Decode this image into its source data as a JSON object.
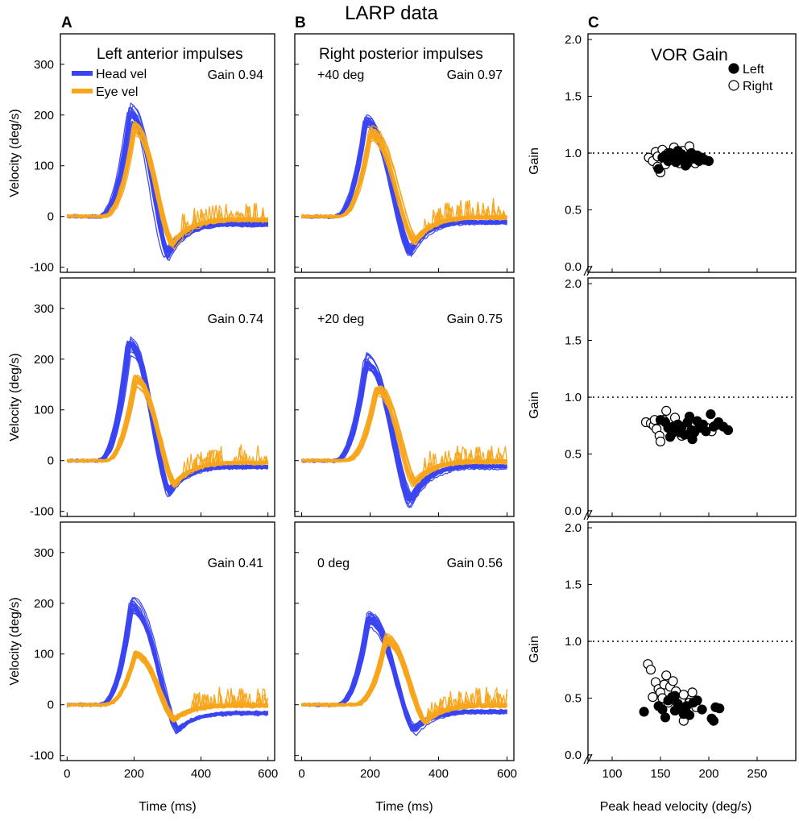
{
  "figure_title": "LARP data",
  "colors": {
    "head": "#3a44f0",
    "eye": "#f7a51c",
    "axis": "#000000",
    "background": "#ffffff"
  },
  "chart_data": [
    {
      "type": "line",
      "panel_letter": "A",
      "row": 1,
      "title": "Left anterior impulses",
      "annotation": "",
      "gain_label": "Gain 0.94",
      "legend": [
        "Head vel",
        "Eye vel"
      ],
      "xlabel": "",
      "ylabel": "Velocity (deg/s)",
      "xlim": [
        -20,
        620
      ],
      "ylim": [
        -110,
        360
      ],
      "xticks": [
        0,
        200,
        400,
        600
      ],
      "yticks": [
        -100,
        0,
        100,
        200,
        300
      ],
      "xtick_labels": [],
      "ytick_labels": [
        "-100",
        "0",
        "100",
        "200",
        "300"
      ],
      "series": [
        {
          "name": "Head vel",
          "peak_time": 188,
          "peak": 200,
          "trough_time": 300,
          "trough": -72,
          "steady": -12,
          "count": 22
        },
        {
          "name": "Eye vel",
          "peak_time": 200,
          "peak": 175,
          "trough_time": 315,
          "trough": -55,
          "steady": -5,
          "count": 22
        }
      ]
    },
    {
      "type": "line",
      "panel_letter": "B",
      "row": 1,
      "title": "Right posterior impulses",
      "annotation": "+40 deg",
      "gain_label": "Gain 0.97",
      "xlabel": "",
      "ylabel": "",
      "xlim": [
        -20,
        620
      ],
      "ylim": [
        -110,
        360
      ],
      "xticks": [
        0,
        200,
        400,
        600
      ],
      "yticks": [
        -100,
        0,
        100,
        200,
        300
      ],
      "xtick_labels": [],
      "ytick_labels": [],
      "series": [
        {
          "name": "Head vel",
          "peak_time": 188,
          "peak": 188,
          "trough_time": 318,
          "trough": -70,
          "steady": -8,
          "count": 22
        },
        {
          "name": "Eye vel",
          "peak_time": 200,
          "peak": 165,
          "trough_time": 330,
          "trough": -50,
          "steady": 0,
          "count": 22
        }
      ]
    },
    {
      "type": "scatter",
      "panel_letter": "C",
      "row": 1,
      "title": "VOR Gain",
      "legend": [
        "Left",
        "Right"
      ],
      "xlabel": "",
      "ylabel": "Gain",
      "xlim": [
        75,
        290
      ],
      "ylim": [
        -0.05,
        2.05
      ],
      "xticks": [
        100,
        150,
        200,
        250
      ],
      "yticks": [
        0.0,
        0.5,
        1.0,
        1.5,
        2.0
      ],
      "xtick_labels": [],
      "ytick_labels": [
        "0.0",
        "0.5",
        "1.0",
        "1.5",
        "2.0"
      ],
      "reference_line": 1.0,
      "series": [
        {
          "name": "Left",
          "filled": true,
          "points": [
            [
              148,
              0.86
            ],
            [
              152,
              0.96
            ],
            [
              155,
              0.98
            ],
            [
              158,
              0.93
            ],
            [
              160,
              1.0
            ],
            [
              163,
              0.95
            ],
            [
              165,
              0.97
            ],
            [
              168,
              1.02
            ],
            [
              170,
              0.94
            ],
            [
              172,
              0.99
            ],
            [
              175,
              0.96
            ],
            [
              178,
              0.91
            ],
            [
              180,
              0.97
            ],
            [
              182,
              1.0
            ],
            [
              185,
              0.95
            ],
            [
              188,
              0.98
            ],
            [
              190,
              0.93
            ],
            [
              193,
              0.96
            ],
            [
              196,
              0.94
            ],
            [
              200,
              0.93
            ],
            [
              176,
              0.89
            ],
            [
              166,
              0.92
            ],
            [
              184,
              0.96
            ]
          ]
        },
        {
          "name": "Right",
          "filled": false,
          "points": [
            [
              138,
              0.96
            ],
            [
              142,
              0.93
            ],
            [
              145,
              1.01
            ],
            [
              147,
              0.97
            ],
            [
              150,
              0.83
            ],
            [
              152,
              1.03
            ],
            [
              155,
              0.9
            ],
            [
              158,
              1.0
            ],
            [
              161,
              0.96
            ],
            [
              164,
              1.05
            ],
            [
              167,
              0.99
            ],
            [
              170,
              0.91
            ],
            [
              173,
              1.02
            ],
            [
              176,
              0.93
            ],
            [
              180,
              1.06
            ],
            [
              183,
              0.98
            ],
            [
              186,
              0.91
            ],
            [
              190,
              0.95
            ],
            [
              147,
              0.88
            ]
          ]
        }
      ]
    },
    {
      "type": "line",
      "panel_letter": "",
      "row": 2,
      "title": "",
      "annotation": "",
      "gain_label": "Gain 0.74",
      "xlabel": "",
      "ylabel": "Velocity (deg/s)",
      "xlim": [
        -20,
        620
      ],
      "ylim": [
        -110,
        360
      ],
      "xticks": [
        0,
        200,
        400,
        600
      ],
      "yticks": [
        -100,
        0,
        100,
        200,
        300
      ],
      "xtick_labels": [],
      "ytick_labels": [
        "-100",
        "0",
        "100",
        "200",
        "300"
      ],
      "series": [
        {
          "name": "Head vel",
          "peak_time": 185,
          "peak": 225,
          "trough_time": 305,
          "trough": -62,
          "steady": -10,
          "count": 22
        },
        {
          "name": "Eye vel",
          "peak_time": 203,
          "peak": 160,
          "trough_time": 320,
          "trough": -45,
          "steady": -2,
          "count": 22
        }
      ]
    },
    {
      "type": "line",
      "panel_letter": "",
      "row": 2,
      "title": "",
      "annotation": "+20 deg",
      "gain_label": "Gain 0.75",
      "xlabel": "",
      "ylabel": "",
      "xlim": [
        -20,
        620
      ],
      "ylim": [
        -110,
        360
      ],
      "xticks": [
        0,
        200,
        400,
        600
      ],
      "yticks": [
        -100,
        0,
        100,
        200,
        300
      ],
      "xtick_labels": [],
      "ytick_labels": [],
      "series": [
        {
          "name": "Head vel",
          "peak_time": 188,
          "peak": 195,
          "trough_time": 318,
          "trough": -80,
          "steady": -8,
          "count": 22
        },
        {
          "name": "Eye vel",
          "peak_time": 218,
          "peak": 140,
          "trough_time": 330,
          "trough": -45,
          "steady": 0,
          "count": 22
        }
      ]
    },
    {
      "type": "scatter",
      "panel_letter": "",
      "row": 2,
      "title": "",
      "xlabel": "",
      "ylabel": "Gain",
      "xlim": [
        75,
        290
      ],
      "ylim": [
        -0.05,
        2.05
      ],
      "xticks": [
        100,
        150,
        200,
        250
      ],
      "yticks": [
        0.0,
        0.5,
        1.0,
        1.5,
        2.0
      ],
      "xtick_labels": [],
      "ytick_labels": [
        "0.0",
        "0.5",
        "1.0",
        "1.5",
        "2.0"
      ],
      "reference_line": 1.0,
      "series": [
        {
          "name": "Left",
          "filled": true,
          "points": [
            [
              150,
              0.8
            ],
            [
              155,
              0.78
            ],
            [
              158,
              0.73
            ],
            [
              160,
              0.65
            ],
            [
              163,
              0.74
            ],
            [
              166,
              0.7
            ],
            [
              168,
              0.76
            ],
            [
              170,
              0.69
            ],
            [
              172,
              0.74
            ],
            [
              175,
              0.67
            ],
            [
              178,
              0.78
            ],
            [
              180,
              0.83
            ],
            [
              182,
              0.71
            ],
            [
              185,
              0.69
            ],
            [
              188,
              0.79
            ],
            [
              190,
              0.73
            ],
            [
              194,
              0.76
            ],
            [
              197,
              0.7
            ],
            [
              202,
              0.85
            ],
            [
              205,
              0.74
            ],
            [
              210,
              0.78
            ],
            [
              215,
              0.74
            ],
            [
              220,
              0.71
            ],
            [
              183,
              0.63
            ]
          ]
        },
        {
          "name": "Right",
          "filled": false,
          "points": [
            [
              135,
              0.78
            ],
            [
              140,
              0.77
            ],
            [
              143,
              0.75
            ],
            [
              146,
              0.72
            ],
            [
              149,
              0.66
            ],
            [
              150,
              0.61
            ],
            [
              153,
              0.8
            ],
            [
              156,
              0.88
            ],
            [
              159,
              0.73
            ],
            [
              162,
              0.68
            ],
            [
              165,
              0.82
            ],
            [
              168,
              0.74
            ],
            [
              172,
              0.66
            ],
            [
              175,
              0.71
            ],
            [
              185,
              0.78
            ],
            [
              198,
              0.73
            ],
            [
              203,
              0.7
            ],
            [
              207,
              0.75
            ],
            [
              144,
              0.8
            ]
          ]
        }
      ]
    },
    {
      "type": "line",
      "panel_letter": "",
      "row": 3,
      "title": "",
      "annotation": "",
      "gain_label": "Gain 0.41",
      "xlabel": "Time (ms)",
      "ylabel": "Velocity (deg/s)",
      "xlim": [
        -20,
        620
      ],
      "ylim": [
        -110,
        360
      ],
      "xticks": [
        0,
        200,
        400,
        600
      ],
      "yticks": [
        -100,
        0,
        100,
        200,
        300
      ],
      "xtick_labels": [
        "0",
        "200",
        "400",
        "600"
      ],
      "ytick_labels": [
        "-100",
        "0",
        "100",
        "200",
        "300"
      ],
      "series": [
        {
          "name": "Head vel",
          "peak_time": 190,
          "peak": 195,
          "trough_time": 330,
          "trough": -50,
          "steady": -15,
          "count": 22
        },
        {
          "name": "Eye vel",
          "peak_time": 205,
          "peak": 100,
          "trough_time": 320,
          "trough": -30,
          "steady": 0,
          "count": 22
        }
      ]
    },
    {
      "type": "line",
      "panel_letter": "",
      "row": 3,
      "title": "",
      "annotation": "0 deg",
      "gain_label": "Gain 0.56",
      "xlabel": "Time (ms)",
      "ylabel": "",
      "xlim": [
        -20,
        620
      ],
      "ylim": [
        -110,
        360
      ],
      "xticks": [
        0,
        200,
        400,
        600
      ],
      "yticks": [
        -100,
        0,
        100,
        200,
        300
      ],
      "xtick_labels": [
        "0",
        "200",
        "400",
        "600"
      ],
      "ytick_labels": [],
      "series": [
        {
          "name": "Head vel",
          "peak_time": 195,
          "peak": 170,
          "trough_time": 328,
          "trough": -50,
          "steady": -12,
          "count": 22
        },
        {
          "name": "Eye vel",
          "peak_time": 245,
          "peak": 130,
          "trough_time": 360,
          "trough": -35,
          "steady": 0,
          "count": 22
        }
      ]
    },
    {
      "type": "scatter",
      "panel_letter": "",
      "row": 3,
      "title": "",
      "xlabel": "Peak head velocity (deg/s)",
      "ylabel": "Gain",
      "xlim": [
        75,
        290
      ],
      "ylim": [
        -0.05,
        2.05
      ],
      "xticks": [
        100,
        150,
        200,
        250
      ],
      "yticks": [
        0.0,
        0.5,
        1.0,
        1.5,
        2.0
      ],
      "xtick_labels": [
        "100",
        "150",
        "200",
        "250"
      ],
      "ytick_labels": [
        "0.0",
        "0.5",
        "1.0",
        "1.5",
        "2.0"
      ],
      "reference_line": 1.0,
      "series": [
        {
          "name": "Left",
          "filled": true,
          "points": [
            [
              133,
              0.38
            ],
            [
              148,
              0.43
            ],
            [
              152,
              0.4
            ],
            [
              155,
              0.33
            ],
            [
              158,
              0.48
            ],
            [
              162,
              0.51
            ],
            [
              165,
              0.39
            ],
            [
              168,
              0.45
            ],
            [
              171,
              0.41
            ],
            [
              174,
              0.36
            ],
            [
              177,
              0.43
            ],
            [
              180,
              0.35
            ],
            [
              184,
              0.46
            ],
            [
              188,
              0.48
            ],
            [
              193,
              0.4
            ],
            [
              203,
              0.32
            ],
            [
              205,
              0.3
            ],
            [
              207,
              0.42
            ],
            [
              211,
              0.41
            ],
            [
              165,
              0.52
            ]
          ]
        },
        {
          "name": "Right",
          "filled": false,
          "points": [
            [
              137,
              0.8
            ],
            [
              140,
              0.75
            ],
            [
              142,
              0.51
            ],
            [
              145,
              0.64
            ],
            [
              148,
              0.58
            ],
            [
              150,
              0.55
            ],
            [
              152,
              0.5
            ],
            [
              154,
              0.62
            ],
            [
              156,
              0.7
            ],
            [
              158,
              0.46
            ],
            [
              160,
              0.6
            ],
            [
              163,
              0.65
            ],
            [
              166,
              0.56
            ],
            [
              168,
              0.4
            ],
            [
              171,
              0.48
            ],
            [
              174,
              0.53
            ],
            [
              177,
              0.37
            ],
            [
              180,
              0.46
            ],
            [
              183,
              0.55
            ],
            [
              187,
              0.42
            ],
            [
              174,
              0.3
            ]
          ]
        }
      ]
    }
  ]
}
